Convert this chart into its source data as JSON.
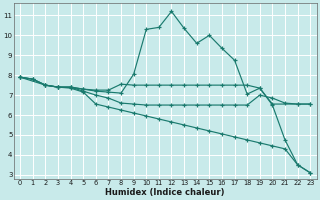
{
  "xlabel": "Humidex (Indice chaleur)",
  "background_color": "#c8eaea",
  "grid_color": "#b0d8d8",
  "line_color": "#1a7a6e",
  "xlim": [
    -0.5,
    23.5
  ],
  "ylim": [
    2.8,
    11.6
  ],
  "xticks": [
    0,
    1,
    2,
    3,
    4,
    5,
    6,
    7,
    8,
    9,
    10,
    11,
    12,
    13,
    14,
    15,
    16,
    17,
    18,
    19,
    20,
    21,
    22,
    23
  ],
  "yticks": [
    3,
    4,
    5,
    6,
    7,
    8,
    9,
    10,
    11
  ],
  "lines": [
    {
      "x": [
        0,
        1,
        2,
        3,
        4,
        5,
        6,
        7,
        8,
        9,
        10,
        11,
        12,
        13,
        14,
        15,
        16,
        17,
        18,
        19,
        20,
        21,
        22,
        23
      ],
      "y": [
        7.9,
        7.8,
        7.5,
        7.4,
        7.4,
        7.3,
        7.2,
        7.15,
        7.1,
        8.05,
        10.3,
        10.4,
        11.2,
        10.35,
        9.6,
        10.0,
        9.35,
        8.75,
        7.05,
        7.35,
        6.5,
        4.75,
        3.5,
        3.1
      ]
    },
    {
      "x": [
        0,
        1,
        2,
        3,
        4,
        5,
        6,
        7,
        8,
        9,
        10,
        11,
        12,
        13,
        14,
        15,
        16,
        17,
        18,
        19,
        20,
        22,
        23
      ],
      "y": [
        7.9,
        7.8,
        7.5,
        7.4,
        7.4,
        7.3,
        7.25,
        7.25,
        7.55,
        7.5,
        7.5,
        7.5,
        7.5,
        7.5,
        7.5,
        7.5,
        7.5,
        7.5,
        7.5,
        7.35,
        6.55,
        6.55,
        6.55
      ]
    },
    {
      "x": [
        0,
        1,
        2,
        3,
        4,
        5,
        6,
        7,
        8,
        9,
        10,
        11,
        12,
        13,
        14,
        15,
        16,
        17,
        18,
        19,
        20,
        21,
        22,
        23
      ],
      "y": [
        7.9,
        7.8,
        7.5,
        7.4,
        7.4,
        7.2,
        7.0,
        6.85,
        6.6,
        6.55,
        6.5,
        6.5,
        6.5,
        6.5,
        6.5,
        6.5,
        6.5,
        6.5,
        6.5,
        7.0,
        6.85,
        6.6,
        6.55,
        6.55
      ]
    },
    {
      "x": [
        0,
        2,
        3,
        4,
        5,
        6,
        7,
        8,
        9,
        10,
        11,
        12,
        13,
        14,
        15,
        16,
        17,
        18,
        19,
        20,
        21,
        22,
        23
      ],
      "y": [
        7.9,
        7.5,
        7.4,
        7.35,
        7.15,
        6.55,
        6.4,
        6.25,
        6.1,
        5.95,
        5.8,
        5.65,
        5.5,
        5.35,
        5.2,
        5.05,
        4.9,
        4.75,
        4.6,
        4.45,
        4.3,
        3.5,
        3.1
      ]
    }
  ]
}
